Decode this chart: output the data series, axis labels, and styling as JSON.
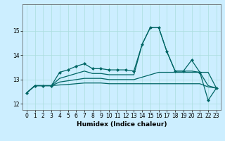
{
  "xlabel": "Humidex (Indice chaleur)",
  "bg_color": "#cceeff",
  "grid_color": "#aadddd",
  "line_color": "#006666",
  "xlim": [
    -0.5,
    23.5
  ],
  "ylim": [
    11.75,
    16.1
  ],
  "yticks": [
    12,
    13,
    14,
    15
  ],
  "xticks": [
    0,
    1,
    2,
    3,
    4,
    5,
    6,
    7,
    8,
    9,
    10,
    11,
    12,
    13,
    14,
    15,
    16,
    17,
    18,
    19,
    20,
    21,
    22,
    23
  ],
  "series": [
    {
      "x": [
        0,
        1,
        2,
        3,
        4,
        5,
        6,
        7,
        8,
        9,
        10,
        11,
        12,
        13,
        14,
        15,
        16,
        17,
        18,
        19,
        20,
        21,
        22,
        23
      ],
      "y": [
        12.45,
        12.75,
        12.75,
        12.75,
        13.3,
        13.4,
        13.55,
        13.65,
        13.45,
        13.45,
        13.4,
        13.4,
        13.4,
        13.35,
        14.45,
        15.15,
        15.15,
        14.15,
        13.35,
        13.35,
        13.8,
        13.3,
        12.15,
        12.65
      ],
      "marker": true,
      "lw": 0.9
    },
    {
      "x": [
        0,
        1,
        2,
        3,
        4,
        5,
        6,
        7,
        8,
        9,
        10,
        11,
        12,
        13,
        14,
        15,
        16,
        17,
        18,
        19,
        20,
        21,
        22,
        23
      ],
      "y": [
        12.45,
        12.75,
        12.75,
        12.75,
        13.05,
        13.15,
        13.25,
        13.35,
        13.25,
        13.25,
        13.2,
        13.2,
        13.2,
        13.2,
        14.45,
        15.15,
        15.15,
        14.15,
        13.35,
        13.35,
        13.35,
        13.3,
        13.3,
        12.65
      ],
      "marker": false,
      "lw": 0.9
    },
    {
      "x": [
        0,
        1,
        2,
        3,
        4,
        5,
        6,
        7,
        8,
        9,
        10,
        11,
        12,
        13,
        14,
        15,
        16,
        17,
        18,
        19,
        20,
        21,
        22,
        23
      ],
      "y": [
        12.45,
        12.75,
        12.75,
        12.75,
        12.9,
        12.95,
        13.0,
        13.05,
        13.05,
        13.05,
        13.0,
        13.0,
        13.0,
        13.0,
        13.1,
        13.2,
        13.3,
        13.3,
        13.3,
        13.3,
        13.3,
        13.3,
        12.75,
        12.65
      ],
      "marker": false,
      "lw": 0.9
    },
    {
      "x": [
        0,
        1,
        2,
        3,
        4,
        5,
        6,
        7,
        8,
        9,
        10,
        11,
        12,
        13,
        14,
        15,
        16,
        17,
        18,
        19,
        20,
        21,
        22,
        23
      ],
      "y": [
        12.45,
        12.75,
        12.75,
        12.75,
        12.78,
        12.8,
        12.83,
        12.86,
        12.86,
        12.86,
        12.83,
        12.83,
        12.83,
        12.83,
        12.83,
        12.83,
        12.83,
        12.83,
        12.83,
        12.83,
        12.83,
        12.83,
        12.7,
        12.65
      ],
      "marker": false,
      "lw": 0.9
    }
  ]
}
